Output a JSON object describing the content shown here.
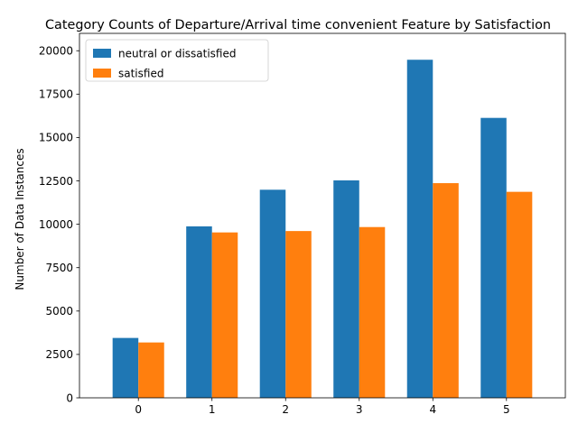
{
  "chart_data": {
    "type": "bar",
    "title": "Category Counts of Departure/Arrival time convenient Feature by Satisfaction",
    "xlabel": "",
    "ylabel": "Number of Data Instances",
    "categories": [
      "0",
      "1",
      "2",
      "3",
      "4",
      "5"
    ],
    "series": [
      {
        "name": "neutral or dissatisfied",
        "color": "#1f77b4",
        "values": [
          3450,
          9880,
          11990,
          12530,
          19480,
          16130
        ]
      },
      {
        "name": "satisfied",
        "color": "#ff7f0e",
        "values": [
          3190,
          9530,
          9610,
          9840,
          12370,
          11870
        ]
      }
    ],
    "ylim": [
      0,
      21000
    ],
    "yticks": [
      0,
      2500,
      5000,
      7500,
      10000,
      12500,
      15000,
      17500,
      20000
    ],
    "grid": false,
    "legend": "top-left"
  }
}
